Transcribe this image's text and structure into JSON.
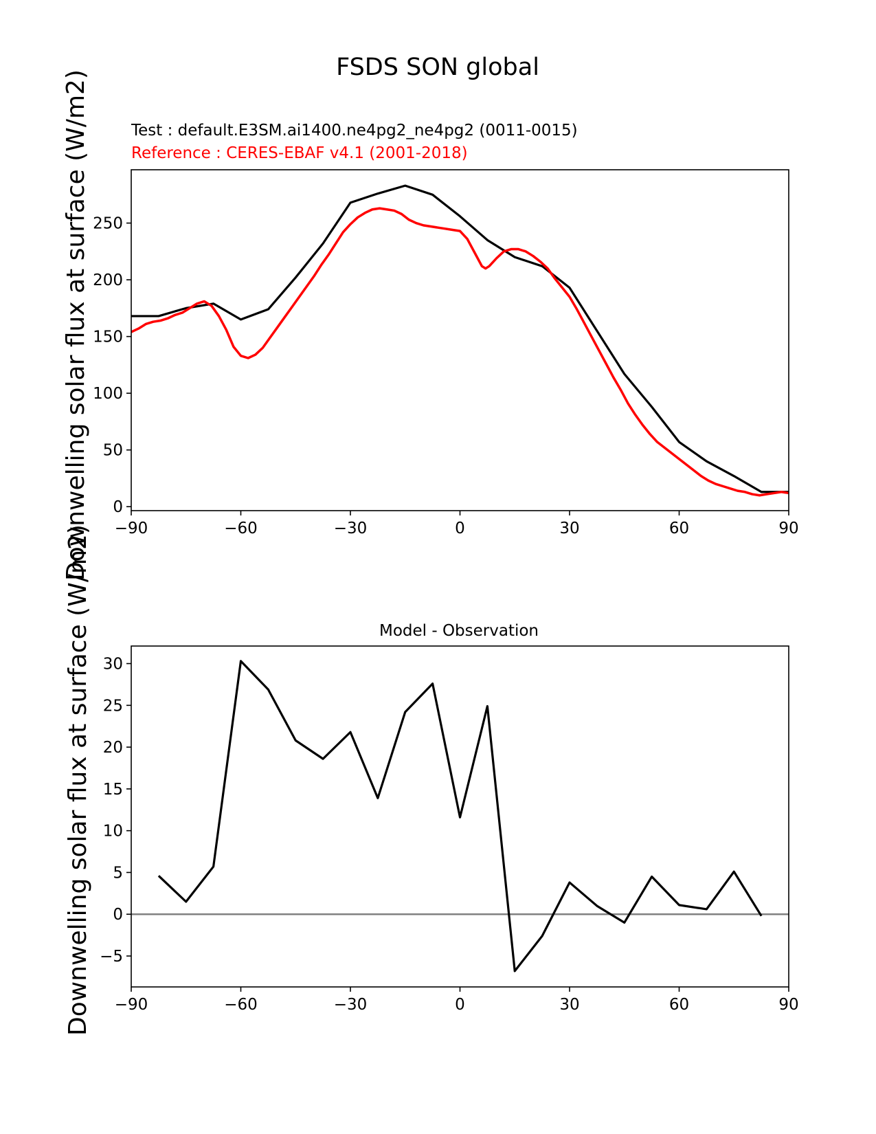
{
  "figure": {
    "title": "FSDS SON global",
    "test_label": "Test : default.E3SM.ai1400.ne4pg2_ne4pg2 (0011-0015)",
    "reference_label": "Reference : CERES-EBAF v4.1 (2001-2018)"
  },
  "colors": {
    "test": "#000000",
    "reference": "#ff0000",
    "zero_line": "#808080",
    "axes": "#000000",
    "background": "#ffffff"
  },
  "chart_data": [
    {
      "type": "line",
      "title": "",
      "xlabel": "",
      "ylabel": "Downwelling solar flux at surface (W/m2)",
      "xlim": [
        -90,
        90
      ],
      "ylim": [
        -3.5,
        297
      ],
      "xticks": [
        -90,
        -60,
        -30,
        0,
        30,
        60,
        90
      ],
      "xtick_labels": [
        "−90",
        "−60",
        "−30",
        "0",
        "30",
        "60",
        "90"
      ],
      "yticks": [
        0,
        50,
        100,
        150,
        200,
        250
      ],
      "ytick_labels": [
        "0",
        "50",
        "100",
        "150",
        "200",
        "250"
      ],
      "grid": false,
      "legend": "none",
      "series": [
        {
          "role": "test",
          "x": [
            -90,
            -82.5,
            -75,
            -67.5,
            -60,
            -52.5,
            -45,
            -37.5,
            -30,
            -22.5,
            -15,
            -7.5,
            0,
            7.5,
            15,
            22.5,
            30,
            37.5,
            45,
            52.5,
            60,
            67.5,
            75,
            82.5,
            90
          ],
          "y": [
            168,
            168,
            175,
            179,
            165,
            174,
            202,
            232,
            268,
            276,
            283,
            275,
            256,
            235,
            220,
            212,
            193,
            155,
            117,
            88,
            57,
            40,
            27,
            13,
            13
          ]
        },
        {
          "role": "reference",
          "x": [
            -90,
            -88,
            -86,
            -84,
            -82,
            -80,
            -78,
            -76,
            -74,
            -72,
            -70,
            -68,
            -66,
            -64,
            -62,
            -60,
            -58,
            -56,
            -54,
            -52,
            -50,
            -48,
            -46,
            -44,
            -42,
            -40,
            -38,
            -36,
            -34,
            -32,
            -30,
            -28,
            -26,
            -24,
            -22,
            -20,
            -18,
            -16,
            -14,
            -12,
            -10,
            -8,
            -6,
            -4,
            -2,
            0,
            2,
            4,
            6,
            7,
            8,
            10,
            12,
            14,
            16,
            18,
            20,
            22,
            24,
            26,
            28,
            30,
            32,
            34,
            36,
            38,
            40,
            42,
            44,
            46,
            48,
            50,
            52,
            54,
            56,
            58,
            60,
            62,
            64,
            66,
            68,
            70,
            72,
            74,
            76,
            78,
            80,
            82,
            84,
            86,
            88,
            90
          ],
          "y": [
            154,
            157,
            161,
            163,
            164,
            166,
            169,
            171,
            175,
            179,
            181,
            177,
            168,
            156,
            141,
            133,
            131,
            134,
            140,
            149,
            158,
            167,
            176,
            185,
            194,
            203,
            213,
            222,
            232,
            242,
            249,
            255,
            259,
            262,
            263,
            262,
            261,
            258,
            253,
            250,
            248,
            247,
            246,
            245,
            244,
            243,
            236,
            224,
            212,
            210,
            212,
            219,
            225,
            227,
            227,
            225,
            221,
            216,
            210,
            201,
            193,
            185,
            174,
            162,
            150,
            138,
            126,
            114,
            103,
            91,
            81,
            72,
            64,
            57,
            52,
            47,
            42,
            37,
            32,
            27,
            23,
            20,
            18,
            16,
            14,
            13,
            11,
            10,
            11,
            12,
            13,
            12
          ]
        }
      ]
    },
    {
      "type": "line",
      "title": "Model - Observation",
      "xlabel": "",
      "ylabel": "Downwelling solar flux at surface (W/m2)",
      "xlim": [
        -90,
        90
      ],
      "ylim": [
        -8.7,
        32.1
      ],
      "xticks": [
        -90,
        -60,
        -30,
        0,
        30,
        60,
        90
      ],
      "xtick_labels": [
        "−90",
        "−60",
        "−30",
        "0",
        "30",
        "60",
        "90"
      ],
      "yticks": [
        -5,
        0,
        5,
        10,
        15,
        20,
        25,
        30
      ],
      "ytick_labels": [
        "−5",
        "0",
        "5",
        "10",
        "15",
        "20",
        "25",
        "30"
      ],
      "grid": false,
      "legend": "none",
      "zero_line": 0,
      "series": [
        {
          "role": "difference",
          "x": [
            -82.5,
            -75,
            -67.5,
            -60,
            -52.5,
            -45,
            -37.5,
            -30,
            -22.5,
            -15,
            -7.5,
            0,
            7.5,
            15,
            22.5,
            30,
            37.5,
            45,
            52.5,
            60,
            67.5,
            75,
            82.5
          ],
          "y": [
            4.6,
            1.5,
            5.7,
            30.3,
            26.9,
            20.8,
            18.6,
            21.8,
            13.9,
            24.2,
            27.6,
            11.6,
            24.9,
            -6.8,
            -2.6,
            3.8,
            1.0,
            -1.0,
            4.5,
            1.1,
            0.6,
            5.1,
            -0.2
          ]
        }
      ]
    }
  ]
}
